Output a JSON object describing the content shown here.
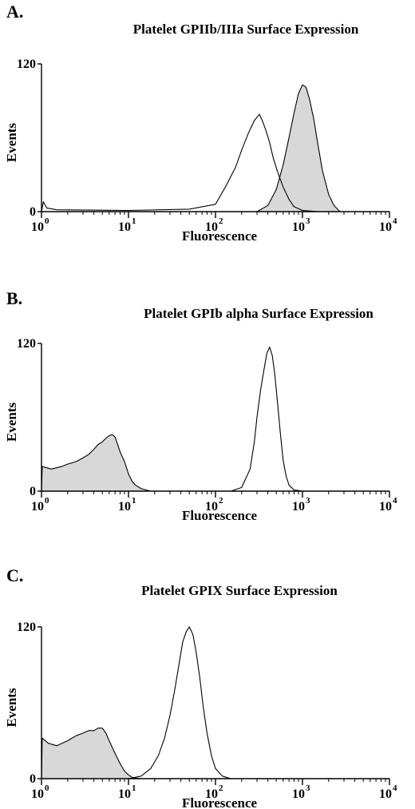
{
  "chart_data": [
    {
      "type": "area",
      "panel_label": "A.",
      "title": "Platelet GPIIb/IIIa Surface Expression",
      "xlabel": "Fluorescence",
      "ylabel": "Events",
      "xscale": "log",
      "xlim": [
        1,
        10000
      ],
      "ylim": [
        0,
        120
      ],
      "xtick_labels": [
        {
          "base": "10",
          "exp": "0",
          "value": 1
        },
        {
          "base": "10",
          "exp": "1",
          "value": 10
        },
        {
          "base": "10",
          "exp": "2",
          "value": 100
        },
        {
          "base": "10",
          "exp": "3",
          "value": 1000
        },
        {
          "base": "10",
          "exp": "4",
          "value": 10000
        }
      ],
      "ytick_labels": [
        {
          "label": "0",
          "value": 0
        },
        {
          "label": "120",
          "value": 120
        }
      ],
      "series": [
        {
          "style": "outline",
          "fill": "none",
          "x": [
            1,
            1.05,
            1.15,
            1.5,
            10,
            50,
            100,
            130,
            170,
            200,
            240,
            280,
            320,
            350,
            380,
            420,
            460,
            520,
            600,
            700,
            800,
            1000,
            1200,
            1500,
            2000,
            10000
          ],
          "y": [
            0,
            8,
            3,
            1.5,
            1,
            2,
            6,
            20,
            36,
            50,
            64,
            74,
            79,
            73,
            66,
            56,
            44,
            32,
            20,
            10,
            4,
            1,
            0.5,
            0,
            0,
            0
          ]
        },
        {
          "style": "filled",
          "fill": "#d8d8d8",
          "x": [
            1,
            300,
            400,
            500,
            600,
            700,
            800,
            900,
            1000,
            1100,
            1200,
            1350,
            1500,
            1700,
            2000,
            2300,
            2700,
            10000
          ],
          "y": [
            0,
            0,
            5,
            18,
            38,
            60,
            80,
            96,
            103,
            101,
            92,
            75,
            55,
            33,
            14,
            5,
            0,
            0
          ]
        }
      ]
    },
    {
      "type": "area",
      "panel_label": "B.",
      "title": "Platelet GPIb alpha Surface Expression",
      "xlabel": "Fluorescence",
      "ylabel": "Events",
      "xscale": "log",
      "xlim": [
        1,
        10000
      ],
      "ylim": [
        0,
        120
      ],
      "xtick_labels": [
        {
          "base": "10",
          "exp": "0",
          "value": 1
        },
        {
          "base": "10",
          "exp": "1",
          "value": 10
        },
        {
          "base": "10",
          "exp": "2",
          "value": 100
        },
        {
          "base": "10",
          "exp": "3",
          "value": 1000
        },
        {
          "base": "10",
          "exp": "4",
          "value": 10000
        }
      ],
      "ytick_labels": [
        {
          "label": "0",
          "value": 0
        },
        {
          "label": "120",
          "value": 120
        }
      ],
      "series": [
        {
          "style": "filled",
          "fill": "#d8d8d8",
          "x": [
            1,
            1.02,
            1.3,
            1.7,
            2,
            2.5,
            3,
            3.5,
            4,
            4.5,
            5,
            5.5,
            6,
            6.5,
            7,
            7.5,
            8,
            9,
            10,
            11,
            12,
            14,
            16,
            18,
            20,
            10000
          ],
          "y": [
            0,
            20,
            18,
            20,
            22,
            24,
            27,
            30,
            34,
            38,
            40,
            43,
            45,
            46,
            44,
            38,
            32,
            24,
            14,
            8,
            5,
            2,
            1,
            0,
            0,
            0
          ]
        },
        {
          "style": "outline",
          "fill": "none",
          "x": [
            1,
            150,
            200,
            250,
            280,
            300,
            330,
            360,
            390,
            420,
            450,
            480,
            520,
            560,
            600,
            650,
            700,
            800,
            900,
            1000,
            10000
          ],
          "y": [
            0,
            0,
            3,
            18,
            40,
            60,
            82,
            98,
            112,
            117,
            110,
            95,
            70,
            45,
            25,
            12,
            5,
            1,
            0.5,
            0,
            0
          ]
        }
      ]
    },
    {
      "type": "area",
      "panel_label": "C.",
      "title": "Platelet GPIX Surface Expression",
      "xlabel": "Fluorescence",
      "ylabel": "Events",
      "xscale": "log",
      "xlim": [
        1,
        10000
      ],
      "ylim": [
        0,
        120
      ],
      "xtick_labels": [
        {
          "base": "10",
          "exp": "0",
          "value": 1
        },
        {
          "base": "10",
          "exp": "1",
          "value": 10
        },
        {
          "base": "10",
          "exp": "2",
          "value": 100
        },
        {
          "base": "10",
          "exp": "3",
          "value": 1000
        },
        {
          "base": "10",
          "exp": "4",
          "value": 10000
        }
      ],
      "ytick_labels": [
        {
          "label": "0",
          "value": 0
        },
        {
          "label": "120",
          "value": 120
        }
      ],
      "series": [
        {
          "style": "filled",
          "fill": "#d8d8d8",
          "x": [
            1,
            1.02,
            1.2,
            1.5,
            2,
            2.5,
            3,
            3.5,
            4,
            4.5,
            5,
            5.5,
            6,
            7,
            8,
            9,
            10,
            11,
            12,
            14,
            10000
          ],
          "y": [
            0,
            32,
            28,
            26,
            30,
            34,
            36,
            38,
            38,
            40,
            40,
            36,
            30,
            20,
            12,
            6,
            3,
            1,
            0.5,
            0,
            0
          ]
        },
        {
          "style": "outline",
          "fill": "none",
          "x": [
            1,
            10,
            14,
            18,
            22,
            26,
            30,
            34,
            38,
            42,
            46,
            50,
            55,
            60,
            66,
            72,
            80,
            90,
            100,
            120,
            150,
            10000
          ],
          "y": [
            0,
            0,
            2,
            8,
            18,
            32,
            50,
            70,
            90,
            108,
            116,
            120,
            114,
            100,
            80,
            58,
            36,
            18,
            8,
            2,
            0,
            0
          ]
        }
      ]
    }
  ]
}
